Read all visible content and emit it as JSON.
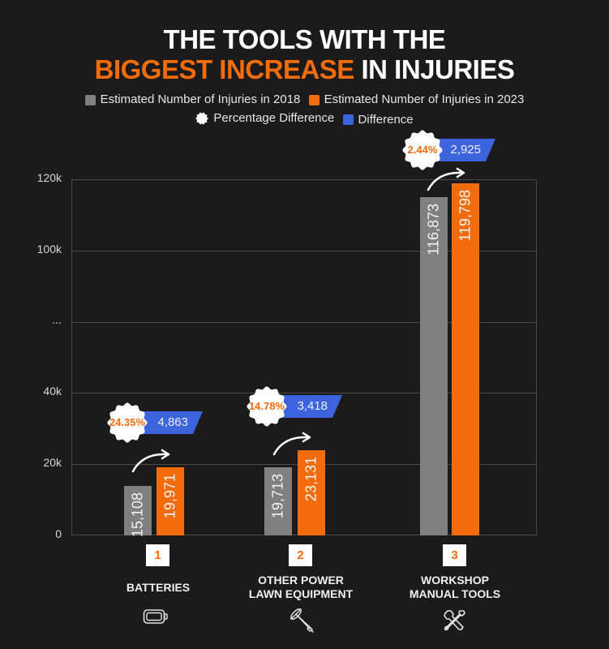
{
  "title": {
    "line1": "THE TOOLS WITH THE",
    "line2_accent": "BIGGEST INCREASE",
    "line2_rest": " IN INJURIES"
  },
  "legend": [
    {
      "label": "Estimated Number of Injuries in 2018",
      "color": "#808080",
      "shape": "square"
    },
    {
      "label": "Estimated Number of Injuries in 2023",
      "color": "#f26c0d",
      "shape": "square"
    },
    {
      "label": "Percentage Difference",
      "color": "#ffffff",
      "shape": "circle"
    },
    {
      "label": "Difference",
      "color": "#3d63dd",
      "shape": "square"
    }
  ],
  "y_axis": {
    "ticks": [
      "0",
      "20k",
      "40k",
      "...",
      "100k",
      "120k"
    ]
  },
  "categories": [
    {
      "rank": "1",
      "label_lines": [
        "BATTERIES"
      ],
      "icon": "battery-icon",
      "v2018": "15,108",
      "v2023": "19,971",
      "pct": "24.35%",
      "diff": "4,863"
    },
    {
      "rank": "2",
      "label_lines": [
        "OTHER POWER",
        "LAWN EQUIPMENT"
      ],
      "icon": "trimmer-icon",
      "v2018": "19,713",
      "v2023": "23,131",
      "pct": "14.78%",
      "diff": "3,418"
    },
    {
      "rank": "3",
      "label_lines": [
        "WORKSHOP",
        "MANUAL TOOLS"
      ],
      "icon": "tools-icon",
      "v2018": "116,873",
      "v2023": "119,798",
      "pct": "2.44%",
      "diff": "2,925"
    }
  ],
  "colors": {
    "background": "#1b1b1b",
    "accent": "#f26c0d",
    "gray": "#808080",
    "blue": "#3d63dd"
  },
  "chart_data": {
    "type": "bar",
    "title": "THE TOOLS WITH THE BIGGEST INCREASE IN INJURIES",
    "categories": [
      "BATTERIES",
      "OTHER POWER LAWN EQUIPMENT",
      "WORKSHOP MANUAL TOOLS"
    ],
    "series": [
      {
        "name": "Estimated Number of Injuries in 2018",
        "values": [
          15108,
          19713,
          116873
        ]
      },
      {
        "name": "Estimated Number of Injuries in 2023",
        "values": [
          19971,
          23131,
          119798
        ]
      },
      {
        "name": "Difference",
        "values": [
          4863,
          3418,
          2925
        ]
      },
      {
        "name": "Percentage Difference",
        "values": [
          24.35,
          14.78,
          2.44
        ]
      }
    ],
    "xlabel": "",
    "ylabel": "",
    "ylim": [
      0,
      120000
    ],
    "yticks": [
      "0",
      "20k",
      "40k",
      "...",
      "100k",
      "120k"
    ],
    "axis_break": "between 40k and 100k (shown as ...)",
    "grid": true,
    "legend_position": "top"
  }
}
